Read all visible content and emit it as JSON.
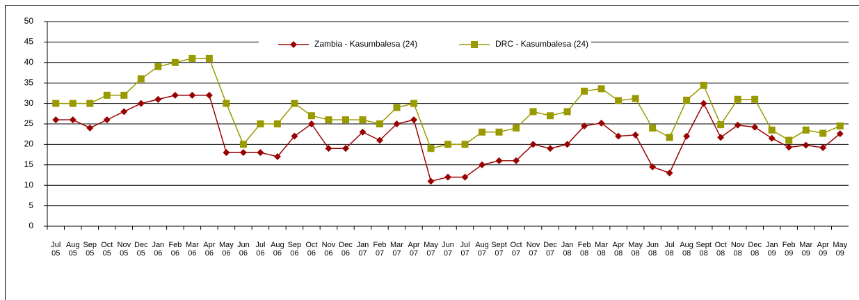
{
  "chart_data": {
    "type": "line",
    "categories": [
      "Jul 05",
      "Aug 05",
      "Sep 05",
      "Oct 05",
      "Nov 05",
      "Dec 05",
      "Jan 06",
      "Feb 06",
      "Mar 06",
      "Apr 06",
      "May 06",
      "Jun 06",
      "Jul 06",
      "Aug 06",
      "Sep 06",
      "Oct 06",
      "Nov 06",
      "Dec 06",
      "Jan 07",
      "Feb 07",
      "Mar 07",
      "Apr 07",
      "May 07",
      "Jun 07",
      "Jul 07",
      "Aug 07",
      "Sept 07",
      "Oct 07",
      "Nov 07",
      "Dec 07",
      "Jan 08",
      "Feb 08",
      "Mar 08",
      "Apr 08",
      "May 08",
      "Jun 08",
      "Jul 08",
      "Aug 08",
      "Sept 08",
      "Oct 08",
      "Nov 08",
      "Dec 08",
      "Jan 09",
      "Feb 09",
      "Mar 09",
      "Apr 09",
      "May 09"
    ],
    "series": [
      {
        "name": "Zambia - Kasumbalesa (24)",
        "color": "#990000",
        "marker": "diamond",
        "values": [
          26,
          26,
          24,
          26,
          28,
          30,
          31,
          32,
          32,
          32,
          18,
          18,
          18,
          17,
          22,
          25,
          19,
          19,
          23,
          21,
          25,
          26,
          11,
          12,
          12,
          15,
          16,
          16,
          20,
          19,
          20,
          24.5,
          25.2,
          22,
          22.3,
          14.5,
          13,
          22,
          30,
          21.7,
          24.7,
          24.2,
          21.5,
          19.3,
          19.8,
          19.2,
          22.6
        ]
      },
      {
        "name": "DRC - Kasumbalesa (24)",
        "color": "#999900",
        "marker": "square",
        "values": [
          30,
          30,
          30,
          32,
          32,
          36,
          39,
          40,
          41,
          41,
          30,
          20,
          25,
          25,
          30,
          27,
          26,
          26,
          26,
          25,
          29,
          30,
          19,
          20,
          20,
          23,
          23,
          24,
          28,
          27,
          28,
          33,
          33.6,
          30.7,
          31.2,
          24,
          21.7,
          30.8,
          34.4,
          24.8,
          31,
          31,
          23.5,
          21,
          23.5,
          22.7,
          24.5
        ]
      }
    ],
    "ylim": [
      0,
      50
    ],
    "yticks": [
      0,
      5,
      10,
      15,
      20,
      25,
      30,
      35,
      40,
      45,
      50
    ],
    "grid": true,
    "legend": "top"
  }
}
